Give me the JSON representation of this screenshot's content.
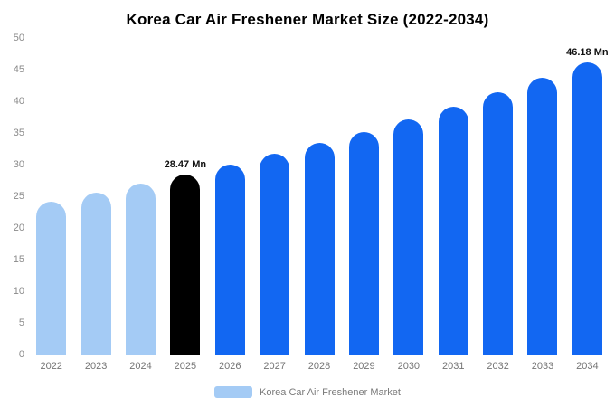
{
  "chart_data": {
    "type": "bar",
    "title": "Korea Car Air Freshener Market Size (2022-2034)",
    "categories": [
      "2022",
      "2023",
      "2024",
      "2025",
      "2026",
      "2027",
      "2028",
      "2029",
      "2030",
      "2031",
      "2032",
      "2033",
      "2034"
    ],
    "values": [
      24.2,
      25.6,
      27.0,
      28.47,
      30.0,
      31.7,
      33.4,
      35.2,
      37.2,
      39.2,
      41.4,
      43.7,
      46.18
    ],
    "bar_colors": [
      "light_blue",
      "light_blue",
      "light_blue",
      "black",
      "blue",
      "blue",
      "blue",
      "blue",
      "blue",
      "blue",
      "blue",
      "blue",
      "blue"
    ],
    "point_labels": [
      "",
      "",
      "",
      "28.47 Mn",
      "",
      "",
      "",
      "",
      "",
      "",
      "",
      "",
      "46.18 Mn"
    ],
    "xlabel": "",
    "ylabel": "",
    "ylim": [
      0,
      50
    ],
    "ytick_step": 5,
    "grid": false,
    "legend_position": "bottom",
    "colors": {
      "light_blue": "#a4cbf5",
      "black": "#000000",
      "blue": "#1267f2"
    },
    "legend": {
      "label": "Korea Car Air Freshener Market",
      "swatch_color": "#a4cbf5"
    }
  }
}
